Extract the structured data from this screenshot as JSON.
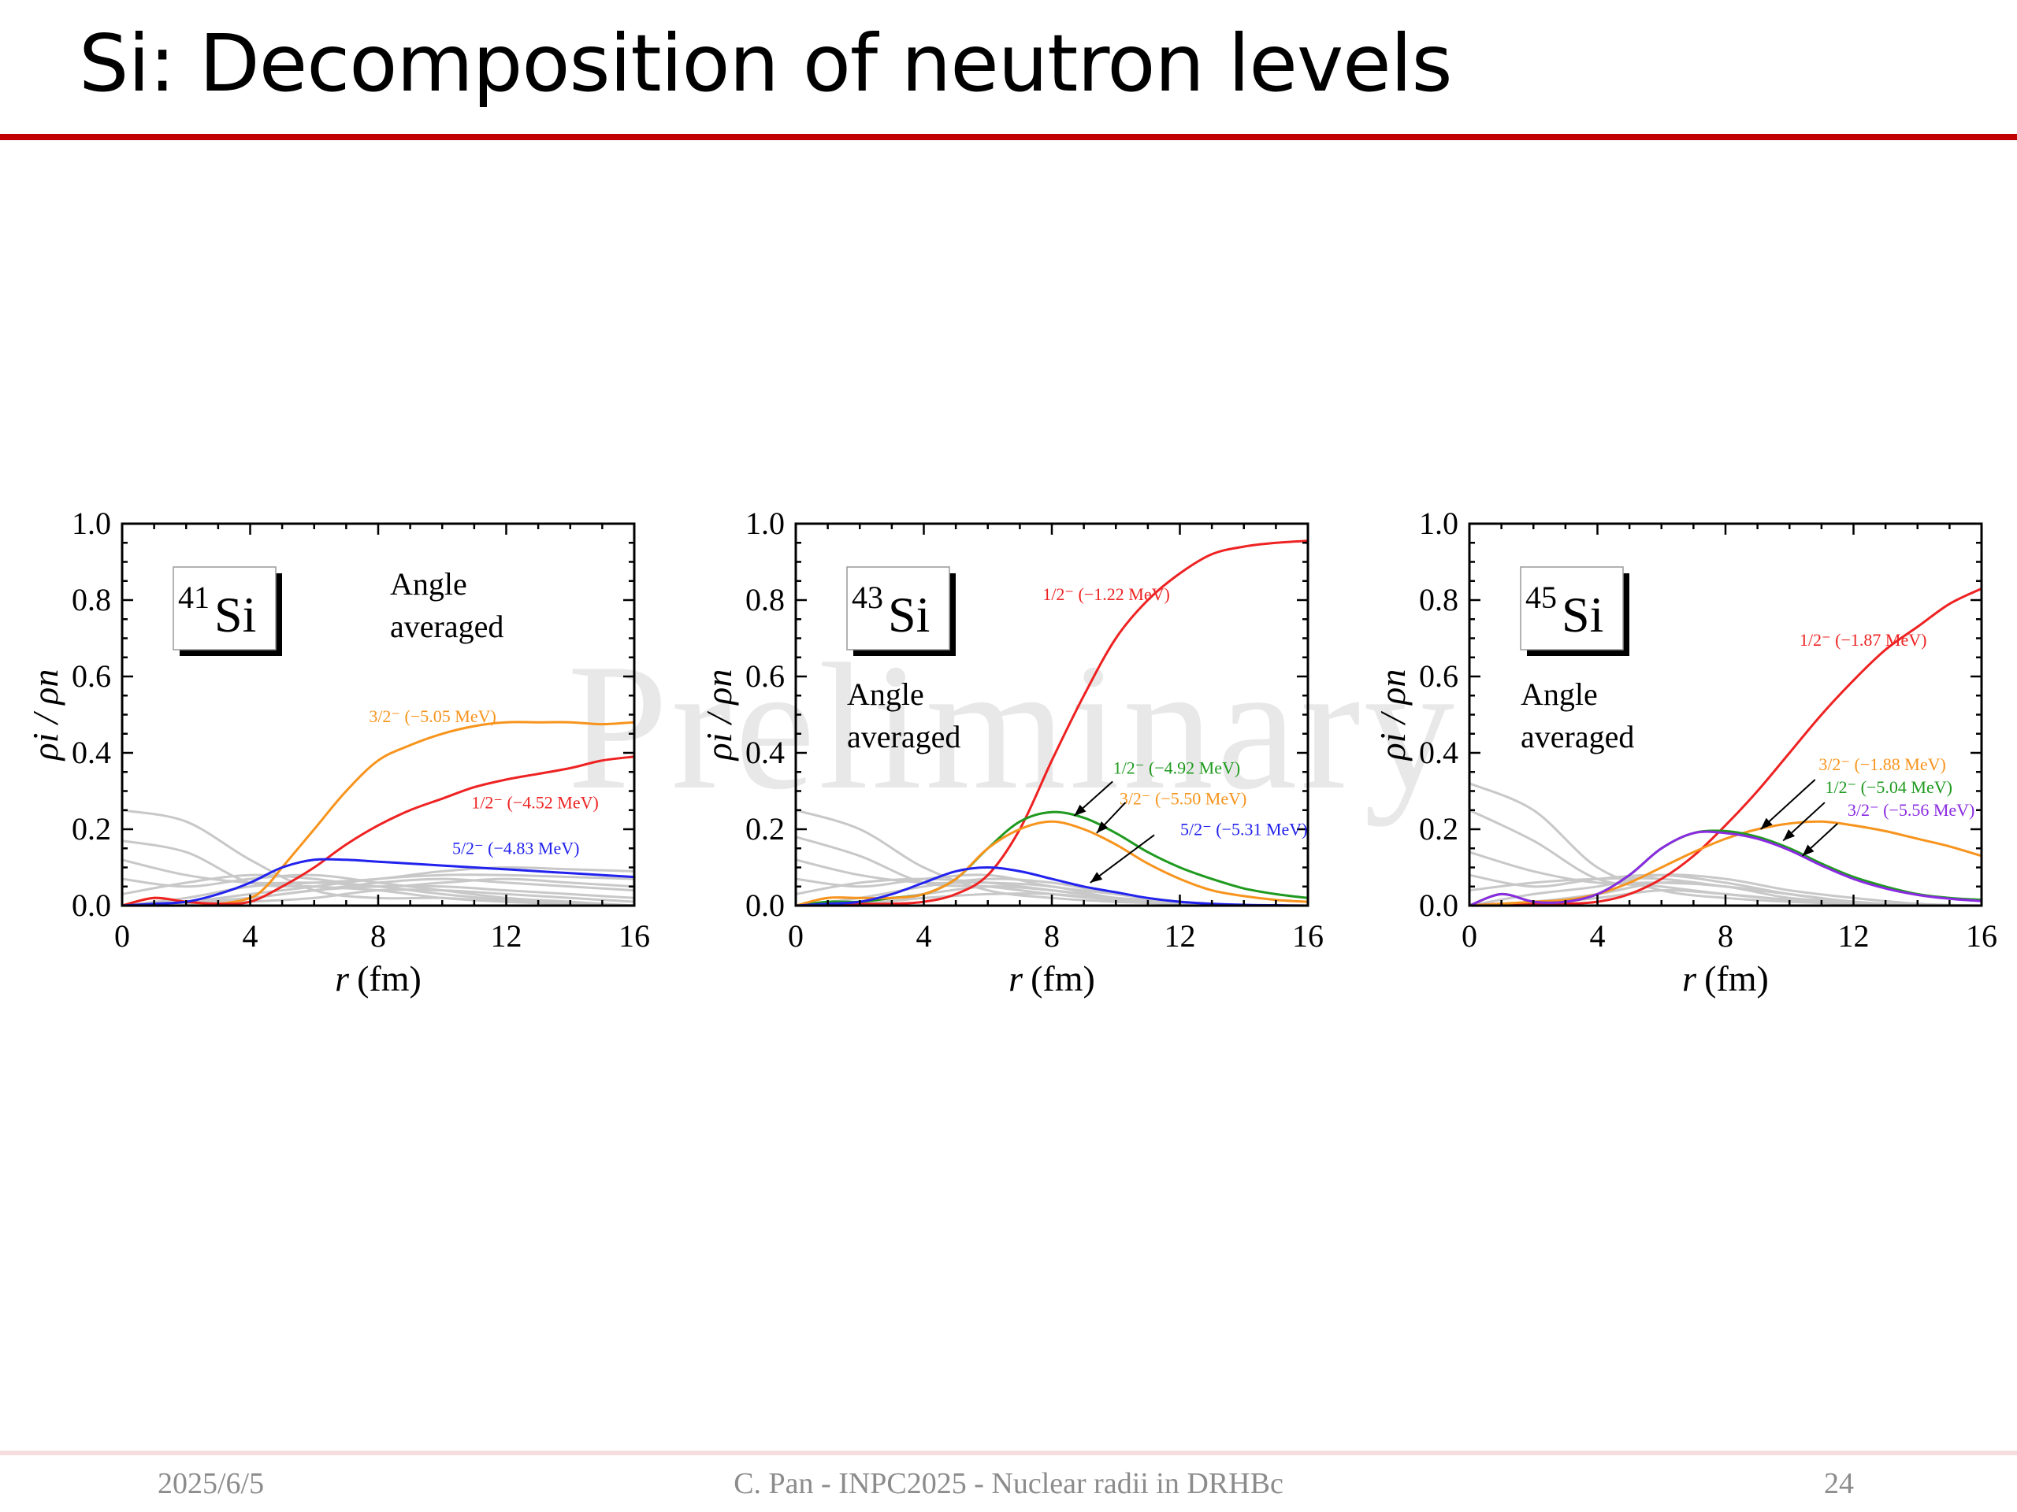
{
  "slide": {
    "title": "Si: Decomposition of neutron levels",
    "watermark": "Preliminary",
    "footer": {
      "date": "2025/6/5",
      "center": "C. Pan - INPC2025 - Nuclear radii in DRHBc",
      "page": "24"
    }
  },
  "colors": {
    "red": "#ee2222",
    "orange": "#f7941d",
    "blue": "#2222ee",
    "green": "#1f9a1f",
    "purple": "#8a2be2",
    "gray": "#c8c8c8",
    "title_rule": "#c00000"
  },
  "chart_data": [
    {
      "type": "line",
      "xlabel_italic": "r",
      "xlabel_unit": "(fm)",
      "ylabel": "ρi / ρn",
      "xlim": [
        0,
        16
      ],
      "ylim": [
        0,
        1.0
      ],
      "x_ticks": [
        "0",
        "4",
        "8",
        "12",
        "16"
      ],
      "y_ticks": [
        "0.0",
        "0.2",
        "0.4",
        "0.6",
        "0.8",
        "1.0"
      ],
      "nucleus_mass": "41",
      "nucleus_symbol": "Si",
      "note_line1": "Angle",
      "note_line2": "averaged",
      "series": [
        {
          "name": "3/2⁻ (−5.05 MeV)",
          "color": "#f7941d",
          "x": [
            0,
            1,
            2,
            3,
            4,
            4.5,
            5,
            6,
            7,
            8,
            9,
            10,
            11,
            12,
            13,
            14,
            15,
            16
          ],
          "y": [
            0.0,
            0.02,
            0.01,
            0.005,
            0.02,
            0.05,
            0.1,
            0.2,
            0.3,
            0.38,
            0.42,
            0.45,
            0.47,
            0.48,
            0.48,
            0.48,
            0.475,
            0.48
          ]
        },
        {
          "name": "1/2⁻ (−4.52 MeV)",
          "color": "#ee2222",
          "x": [
            0,
            1,
            2,
            3,
            4,
            5,
            6,
            7,
            8,
            9,
            10,
            11,
            12,
            13,
            14,
            15,
            16
          ],
          "y": [
            0.0,
            0.02,
            0.01,
            0.005,
            0.01,
            0.05,
            0.1,
            0.16,
            0.21,
            0.25,
            0.28,
            0.31,
            0.33,
            0.345,
            0.36,
            0.38,
            0.39
          ]
        },
        {
          "name": "5/2⁻ (−4.83 MeV)",
          "color": "#2222ee",
          "x": [
            0,
            1,
            2,
            3,
            4,
            5,
            6,
            7,
            8,
            9,
            10,
            11,
            12,
            13,
            14,
            15,
            16
          ],
          "y": [
            0.0,
            0.005,
            0.01,
            0.03,
            0.06,
            0.1,
            0.12,
            0.12,
            0.115,
            0.11,
            0.105,
            0.1,
            0.095,
            0.09,
            0.085,
            0.08,
            0.075
          ]
        }
      ],
      "gray_curves": [
        [
          0.25,
          0.22,
          0.12,
          0.04,
          0.02,
          0.02,
          0.01,
          0.005,
          0.0
        ],
        [
          0.17,
          0.14,
          0.06,
          0.05,
          0.04,
          0.02,
          0.01,
          0.005,
          0.0
        ],
        [
          0.12,
          0.08,
          0.06,
          0.06,
          0.05,
          0.03,
          0.015,
          0.005,
          0.0
        ],
        [
          0.07,
          0.05,
          0.07,
          0.08,
          0.06,
          0.04,
          0.02,
          0.01,
          0.0
        ],
        [
          0.03,
          0.06,
          0.08,
          0.07,
          0.05,
          0.06,
          0.07,
          0.06,
          0.05
        ],
        [
          0.0,
          0.02,
          0.05,
          0.06,
          0.07,
          0.09,
          0.1,
          0.095,
          0.09
        ],
        [
          0.0,
          0.01,
          0.03,
          0.05,
          0.07,
          0.08,
          0.08,
          0.075,
          0.07
        ],
        [
          0.0,
          0.005,
          0.02,
          0.04,
          0.06,
          0.07,
          0.06,
          0.05,
          0.04
        ],
        [
          0.0,
          0.01,
          0.02,
          0.04,
          0.05,
          0.05,
          0.04,
          0.03,
          0.02
        ],
        [
          0.0,
          0.0,
          0.01,
          0.02,
          0.04,
          0.04,
          0.03,
          0.02,
          0.01
        ]
      ],
      "gray_x": [
        0,
        2,
        4,
        6,
        8,
        10,
        12,
        14,
        16
      ],
      "labels": [
        {
          "series": 0,
          "text": "3/2⁻ (−5.05 MeV)",
          "x": 9.7,
          "y": 0.48,
          "anchor": "middle"
        },
        {
          "series": 1,
          "text": "1/2⁻ (−4.52 MeV)",
          "x": 12.9,
          "y": 0.255,
          "anchor": "middle"
        },
        {
          "series": 2,
          "text": "5/2⁻ (−4.83 MeV)",
          "x": 12.3,
          "y": 0.135,
          "anchor": "middle"
        }
      ],
      "arrows": []
    },
    {
      "type": "line",
      "xlabel_italic": "r",
      "xlabel_unit": "(fm)",
      "ylabel": "ρi / ρn",
      "xlim": [
        0,
        16
      ],
      "ylim": [
        0,
        1.0
      ],
      "x_ticks": [
        "0",
        "4",
        "8",
        "12",
        "16"
      ],
      "y_ticks": [
        "0.0",
        "0.2",
        "0.4",
        "0.6",
        "0.8",
        "1.0"
      ],
      "nucleus_mass": "43",
      "nucleus_symbol": "Si",
      "note_line1": "Angle",
      "note_line2": "averaged",
      "series": [
        {
          "name": "1/2⁻ (−1.22 MeV)",
          "color": "#ee2222",
          "x": [
            0,
            1,
            2,
            3,
            4,
            5,
            6,
            7,
            8,
            9,
            10,
            11,
            12,
            13,
            14,
            15,
            16
          ],
          "y": [
            0.0,
            0.005,
            0.005,
            0.005,
            0.01,
            0.03,
            0.08,
            0.2,
            0.38,
            0.55,
            0.7,
            0.8,
            0.87,
            0.92,
            0.94,
            0.95,
            0.955
          ]
        },
        {
          "name": "1/2⁻ (−4.92 MeV)",
          "color": "#1f9a1f",
          "x": [
            0,
            1,
            2,
            3,
            4,
            5,
            6,
            7,
            8,
            9,
            10,
            11,
            12,
            13,
            14,
            15,
            16
          ],
          "y": [
            0.0,
            0.01,
            0.01,
            0.02,
            0.03,
            0.07,
            0.15,
            0.22,
            0.245,
            0.23,
            0.19,
            0.14,
            0.1,
            0.07,
            0.045,
            0.03,
            0.02
          ]
        },
        {
          "name": "3/2⁻ (−5.50 MeV)",
          "color": "#f7941d",
          "x": [
            0,
            1,
            2,
            3,
            4,
            5,
            6,
            7,
            8,
            9,
            10,
            11,
            12,
            13,
            14,
            15,
            16
          ],
          "y": [
            0.0,
            0.02,
            0.02,
            0.02,
            0.03,
            0.07,
            0.15,
            0.2,
            0.22,
            0.2,
            0.16,
            0.11,
            0.07,
            0.04,
            0.025,
            0.015,
            0.01
          ]
        },
        {
          "name": "5/2⁻ (−5.31 MeV)",
          "color": "#2222ee",
          "x": [
            0,
            1,
            2,
            3,
            4,
            5,
            6,
            7,
            8,
            9,
            10,
            11,
            12,
            13,
            14,
            15,
            16
          ],
          "y": [
            0.0,
            0.005,
            0.01,
            0.03,
            0.06,
            0.09,
            0.1,
            0.09,
            0.07,
            0.05,
            0.035,
            0.02,
            0.01,
            0.005,
            0.002,
            0.001,
            0.0
          ]
        }
      ],
      "gray_curves": [
        [
          0.25,
          0.2,
          0.1,
          0.04,
          0.02,
          0.01,
          0.005,
          0.0,
          0.0
        ],
        [
          0.18,
          0.13,
          0.06,
          0.05,
          0.03,
          0.015,
          0.005,
          0.0,
          0.0
        ],
        [
          0.12,
          0.08,
          0.06,
          0.06,
          0.05,
          0.02,
          0.01,
          0.0,
          0.0
        ],
        [
          0.07,
          0.05,
          0.07,
          0.08,
          0.05,
          0.03,
          0.01,
          0.0,
          0.0
        ],
        [
          0.03,
          0.06,
          0.07,
          0.06,
          0.04,
          0.02,
          0.01,
          0.0,
          0.0
        ],
        [
          0.0,
          0.02,
          0.05,
          0.07,
          0.06,
          0.03,
          0.01,
          0.0,
          0.0
        ],
        [
          0.0,
          0.01,
          0.03,
          0.05,
          0.04,
          0.02,
          0.01,
          0.0,
          0.0
        ],
        [
          0.0,
          0.005,
          0.02,
          0.03,
          0.03,
          0.015,
          0.005,
          0.0,
          0.0
        ]
      ],
      "gray_x": [
        0,
        2,
        4,
        6,
        8,
        10,
        12,
        14,
        16
      ],
      "labels": [
        {
          "series": 0,
          "text": "1/2⁻ (−1.22 MeV)",
          "x": 9.7,
          "y": 0.8,
          "anchor": "middle"
        },
        {
          "series": 1,
          "text": "1/2⁻ (−4.92 MeV)",
          "x": 11.9,
          "y": 0.345,
          "anchor": "middle"
        },
        {
          "series": 2,
          "text": "3/2⁻ (−5.50 MeV)",
          "x": 12.1,
          "y": 0.265,
          "anchor": "middle"
        },
        {
          "series": 3,
          "text": "5/2⁻ (−5.31 MeV)",
          "x": 14.0,
          "y": 0.185,
          "anchor": "middle"
        }
      ],
      "arrows": [
        {
          "series": 1,
          "from": [
            9.9,
            0.325
          ],
          "to": [
            8.7,
            0.235
          ]
        },
        {
          "series": 2,
          "from": [
            10.3,
            0.27
          ],
          "to": [
            9.4,
            0.19
          ]
        },
        {
          "series": 3,
          "from": [
            11.2,
            0.185
          ],
          "to": [
            9.2,
            0.06
          ]
        }
      ]
    },
    {
      "type": "line",
      "xlabel_italic": "r",
      "xlabel_unit": "(fm)",
      "ylabel": "ρi / ρn",
      "xlim": [
        0,
        16
      ],
      "ylim": [
        0,
        1.0
      ],
      "x_ticks": [
        "0",
        "4",
        "8",
        "12",
        "16"
      ],
      "y_ticks": [
        "0.0",
        "0.2",
        "0.4",
        "0.6",
        "0.8",
        "1.0"
      ],
      "nucleus_mass": "45",
      "nucleus_symbol": "Si",
      "note_line1": "Angle",
      "note_line2": "averaged",
      "series": [
        {
          "name": "1/2⁻ (−1.87 MeV)",
          "color": "#ee2222",
          "x": [
            0,
            1,
            2,
            3,
            4,
            5,
            6,
            7,
            8,
            9,
            10,
            11,
            12,
            13,
            14,
            15,
            16
          ],
          "y": [
            0.0,
            0.005,
            0.005,
            0.005,
            0.01,
            0.03,
            0.07,
            0.13,
            0.21,
            0.3,
            0.4,
            0.5,
            0.59,
            0.67,
            0.73,
            0.79,
            0.83
          ]
        },
        {
          "name": "3/2⁻ (−1.88 MeV)",
          "color": "#f7941d",
          "x": [
            0,
            1,
            2,
            3,
            4,
            5,
            6,
            7,
            8,
            9,
            10,
            11,
            12,
            13,
            14,
            15,
            16
          ],
          "y": [
            0.0,
            0.005,
            0.01,
            0.015,
            0.03,
            0.06,
            0.1,
            0.14,
            0.175,
            0.2,
            0.215,
            0.22,
            0.21,
            0.195,
            0.175,
            0.155,
            0.13
          ]
        },
        {
          "name": "1/2⁻ (−5.04 MeV)",
          "color": "#1f9a1f",
          "x": [
            0,
            1,
            2,
            3,
            4,
            5,
            6,
            7,
            8,
            9,
            10,
            11,
            12,
            13,
            14,
            15,
            16
          ],
          "y": [
            0.0,
            0.03,
            0.01,
            0.01,
            0.03,
            0.08,
            0.15,
            0.19,
            0.195,
            0.18,
            0.15,
            0.11,
            0.075,
            0.05,
            0.03,
            0.02,
            0.015
          ]
        },
        {
          "name": "3/2⁻ (−5.56 MeV)",
          "color": "#8a2be2",
          "x": [
            0,
            1,
            2,
            3,
            4,
            5,
            6,
            7,
            8,
            9,
            10,
            11,
            12,
            13,
            14,
            15,
            16
          ],
          "y": [
            0.0,
            0.03,
            0.01,
            0.01,
            0.03,
            0.08,
            0.15,
            0.19,
            0.19,
            0.175,
            0.145,
            0.105,
            0.07,
            0.045,
            0.028,
            0.018,
            0.012
          ]
        }
      ],
      "gray_curves": [
        [
          0.32,
          0.25,
          0.1,
          0.04,
          0.02,
          0.01,
          0.005,
          0.0,
          0.0
        ],
        [
          0.25,
          0.17,
          0.07,
          0.05,
          0.03,
          0.015,
          0.005,
          0.0,
          0.0
        ],
        [
          0.14,
          0.09,
          0.06,
          0.06,
          0.05,
          0.02,
          0.01,
          0.0,
          0.0
        ],
        [
          0.08,
          0.05,
          0.07,
          0.08,
          0.06,
          0.03,
          0.01,
          0.0,
          0.0
        ],
        [
          0.04,
          0.06,
          0.07,
          0.07,
          0.05,
          0.03,
          0.01,
          0.0,
          0.0
        ],
        [
          0.0,
          0.03,
          0.05,
          0.08,
          0.07,
          0.04,
          0.02,
          0.005,
          0.0
        ],
        [
          0.0,
          0.01,
          0.03,
          0.06,
          0.05,
          0.03,
          0.01,
          0.0,
          0.0
        ],
        [
          0.0,
          0.005,
          0.02,
          0.04,
          0.03,
          0.015,
          0.005,
          0.0,
          0.0
        ]
      ],
      "gray_x": [
        0,
        2,
        4,
        6,
        8,
        10,
        12,
        14,
        16
      ],
      "labels": [
        {
          "series": 0,
          "text": "1/2⁻ (−1.87 MeV)",
          "x": 12.3,
          "y": 0.68,
          "anchor": "middle"
        },
        {
          "series": 1,
          "text": "3/2⁻ (−1.88 MeV)",
          "x": 12.9,
          "y": 0.355,
          "anchor": "middle"
        },
        {
          "series": 2,
          "text": "1/2⁻ (−5.04 MeV)",
          "x": 13.1,
          "y": 0.295,
          "anchor": "middle"
        },
        {
          "series": 3,
          "text": "3/2⁻ (−5.56 MeV)",
          "x": 13.8,
          "y": 0.235,
          "anchor": "middle"
        }
      ],
      "arrows": [
        {
          "series": 1,
          "from": [
            10.8,
            0.33
          ],
          "to": [
            9.1,
            0.2
          ]
        },
        {
          "series": 2,
          "from": [
            11.1,
            0.27
          ],
          "to": [
            9.8,
            0.17
          ]
        },
        {
          "series": 3,
          "from": [
            11.5,
            0.215
          ],
          "to": [
            10.4,
            0.13
          ]
        }
      ]
    }
  ]
}
